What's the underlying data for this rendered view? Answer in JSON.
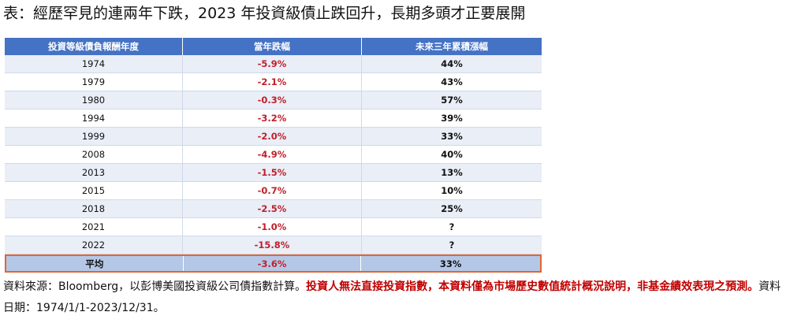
{
  "title": "表：經歷罕見的連兩年下跌，2023 年投資級債止跌回升，長期多頭才正要展開",
  "chart_data": {
    "type": "table",
    "columns": [
      "投資等級債負報酬年度",
      "當年跌幅",
      "未來三年累積漲幅"
    ],
    "rows": [
      {
        "year": "1974",
        "decline": "-5.9%",
        "gain3y": "44%"
      },
      {
        "year": "1979",
        "decline": "-2.1%",
        "gain3y": "43%"
      },
      {
        "year": "1980",
        "decline": "-0.3%",
        "gain3y": "57%"
      },
      {
        "year": "1994",
        "decline": "-3.2%",
        "gain3y": "39%"
      },
      {
        "year": "1999",
        "decline": "-2.0%",
        "gain3y": "33%"
      },
      {
        "year": "2008",
        "decline": "-4.9%",
        "gain3y": "40%"
      },
      {
        "year": "2013",
        "decline": "-1.5%",
        "gain3y": "13%"
      },
      {
        "year": "2015",
        "decline": "-0.7%",
        "gain3y": "10%"
      },
      {
        "year": "2018",
        "decline": "-2.5%",
        "gain3y": "25%"
      },
      {
        "year": "2021",
        "decline": "-1.0%",
        "gain3y": "?"
      },
      {
        "year": "2022",
        "decline": "-15.8%",
        "gain3y": "?"
      }
    ],
    "average": {
      "label": "平均",
      "decline": "-3.6%",
      "gain3y": "33%"
    }
  },
  "colors": {
    "header_bg": "#4472c4",
    "row_alt_bg": "#e9eef7",
    "average_bg": "#b4c7e7",
    "average_border": "#e2662c",
    "negative_text": "#c0202a"
  },
  "note": {
    "prefix": "資料來源：Bloomberg，以彭博美國投資級公司債指數計算。",
    "warning": "投資人無法直接投資指數，本資料僅為市場歷史數值統計概況說明，非基金績效表現之預測。",
    "suffix": "資料日期：1974/1/1-2023/12/31。"
  }
}
